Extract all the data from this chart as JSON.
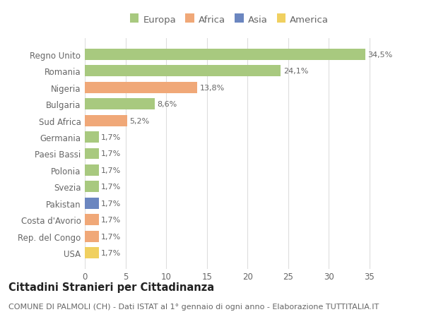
{
  "categories": [
    "Regno Unito",
    "Romania",
    "Nigeria",
    "Bulgaria",
    "Sud Africa",
    "Germania",
    "Paesi Bassi",
    "Polonia",
    "Svezia",
    "Pakistan",
    "Costa d'Avorio",
    "Rep. del Congo",
    "USA"
  ],
  "values": [
    34.5,
    24.1,
    13.8,
    8.6,
    5.2,
    1.7,
    1.7,
    1.7,
    1.7,
    1.7,
    1.7,
    1.7,
    1.7
  ],
  "labels": [
    "34,5%",
    "24,1%",
    "13,8%",
    "8,6%",
    "5,2%",
    "1,7%",
    "1,7%",
    "1,7%",
    "1,7%",
    "1,7%",
    "1,7%",
    "1,7%",
    "1,7%"
  ],
  "colors": [
    "#a8c97f",
    "#a8c97f",
    "#f0a878",
    "#a8c97f",
    "#f0a878",
    "#a8c97f",
    "#a8c97f",
    "#a8c97f",
    "#a8c97f",
    "#6b86c0",
    "#f0a878",
    "#f0a878",
    "#f0d060"
  ],
  "legend_labels": [
    "Europa",
    "Africa",
    "Asia",
    "America"
  ],
  "legend_colors": [
    "#a8c97f",
    "#f0a878",
    "#6b86c0",
    "#f0d060"
  ],
  "title": "Cittadini Stranieri per Cittadinanza",
  "subtitle": "COMUNE DI PALMOLI (CH) - Dati ISTAT al 1° gennaio di ogni anno - Elaborazione TUTTITALIA.IT",
  "xlim": [
    0,
    37
  ],
  "xticks": [
    0,
    5,
    10,
    15,
    20,
    25,
    30,
    35
  ],
  "background_color": "#ffffff",
  "grid_color": "#dddddd",
  "bar_height": 0.68,
  "title_fontsize": 10.5,
  "subtitle_fontsize": 8,
  "label_fontsize": 8,
  "tick_fontsize": 8.5,
  "legend_fontsize": 9.5
}
